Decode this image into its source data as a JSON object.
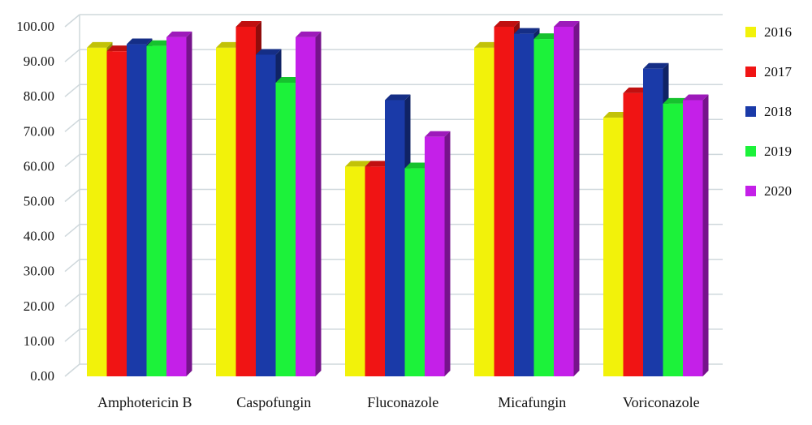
{
  "chart_data": {
    "type": "bar",
    "title": "",
    "xlabel": "",
    "ylabel": "",
    "ylim": [
      0,
      100
    ],
    "yticks": [
      "0.00",
      "10.00",
      "20.00",
      "30.00",
      "40.00",
      "50.00",
      "60.00",
      "70.00",
      "80.00",
      "90.00",
      "100.00"
    ],
    "grid": true,
    "legend_position": "right",
    "categories": [
      "Amphotericin B",
      "Caspofungin",
      "Fluconazole",
      "Micafungin",
      "Voriconazole"
    ],
    "series": [
      {
        "name": "2016",
        "color": "#f2f20a",
        "values": [
          94,
          94,
          60,
          94,
          74
        ]
      },
      {
        "name": "2017",
        "color": "#f01414",
        "values": [
          93,
          100,
          60,
          100,
          81
        ]
      },
      {
        "name": "2018",
        "color": "#1a3aa8",
        "values": [
          95,
          92,
          79,
          98,
          88
        ]
      },
      {
        "name": "2019",
        "color": "#1cf23a",
        "values": [
          94.5,
          84,
          59.5,
          96.5,
          78
        ]
      },
      {
        "name": "2020",
        "color": "#c420e8",
        "values": [
          97,
          97,
          68.5,
          100,
          79
        ]
      }
    ]
  }
}
